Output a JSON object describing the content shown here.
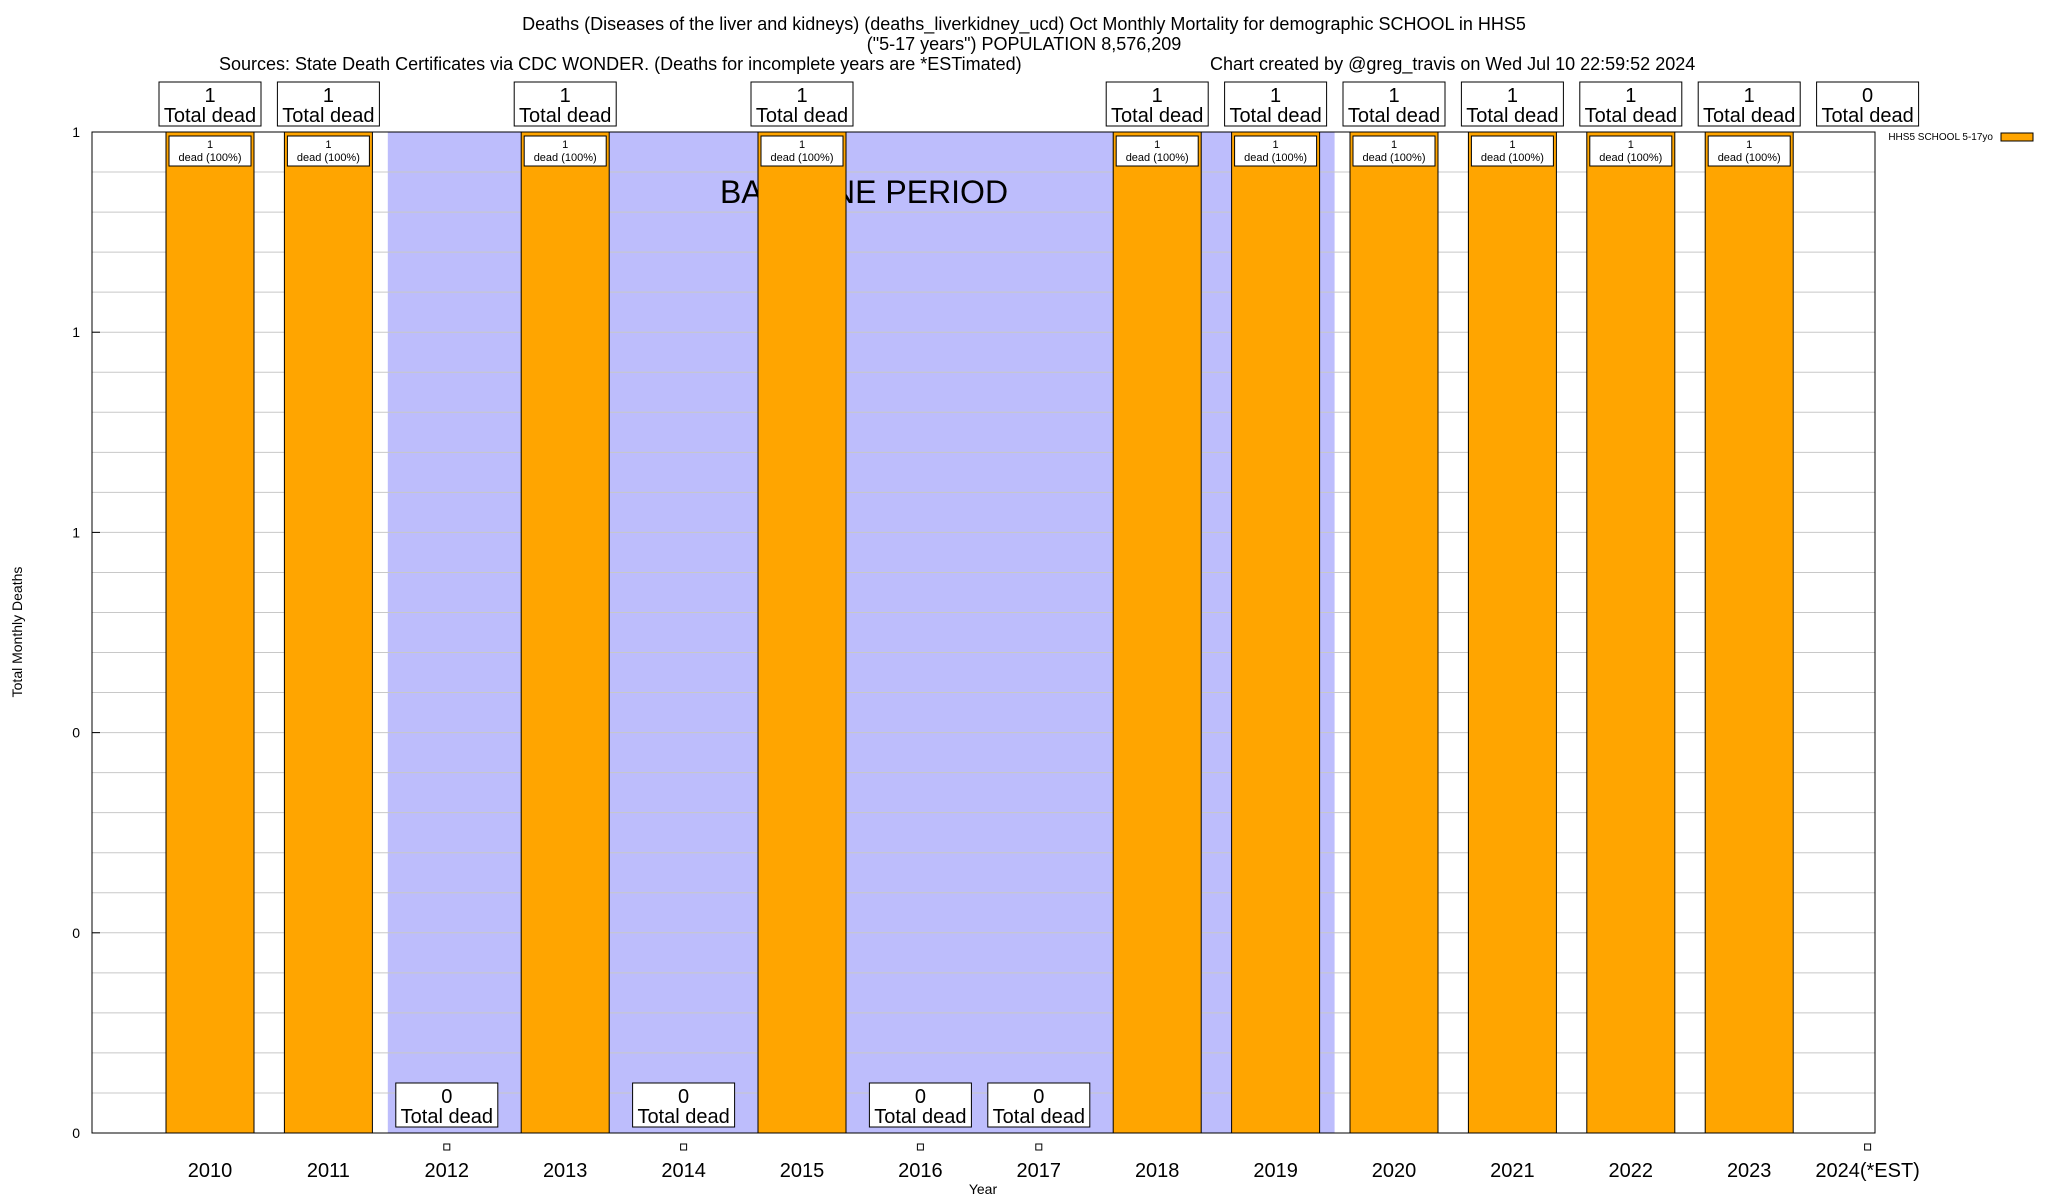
{
  "header": {
    "title_line1": "Deaths (Diseases of the liver and kidneys) (deaths_liverkidney_ucd) Oct Monthly Mortality for demographic SCHOOL in HHS5",
    "title_line2": "(\"5-17 years\") POPULATION 8,576,209",
    "sources": "Sources: State Death Certificates via CDC WONDER. (Deaths for incomplete years are *ESTimated)",
    "credit": "Chart created by @greg_travis on Wed Jul 10 22:59:52 2024"
  },
  "chart_data": {
    "type": "bar",
    "title": "Deaths (Diseases of the liver and kidneys) (deaths_liverkidney_ucd) Oct Monthly Mortality for demographic SCHOOL in HHS5",
    "xlabel": "Year",
    "ylabel": "Total Monthly Deaths",
    "ylim": [
      0,
      1
    ],
    "y_tick_labels": [
      "0",
      "0",
      "0",
      "1",
      "1",
      "1"
    ],
    "categories": [
      "2010",
      "2011",
      "2012",
      "2013",
      "2014",
      "2015",
      "2016",
      "2017",
      "2018",
      "2019",
      "2020",
      "2021",
      "2022",
      "2023",
      "2024(*EST)"
    ],
    "series": [
      {
        "name": "HHS5 SCHOOL 5-17yo",
        "color": "#ffa500",
        "values": [
          1,
          1,
          0,
          1,
          0,
          1,
          0,
          0,
          1,
          1,
          1,
          1,
          1,
          1,
          0
        ]
      }
    ],
    "total_labels": [
      "1",
      "1",
      "0",
      "1",
      "0",
      "1",
      "0",
      "0",
      "1",
      "1",
      "1",
      "1",
      "1",
      "1",
      "0"
    ],
    "total_suffix": "Total dead",
    "bar_label_count": "1",
    "bar_label_text": "dead (100%)",
    "baseline_label": "BASELINE PERIOD",
    "baseline_color": "#bdbdfc",
    "baseline_span": [
      "2012",
      "2019"
    ],
    "legend": {
      "entry": "HHS5 SCHOOL 5-17yo",
      "position": "top-right"
    },
    "grid": true
  }
}
